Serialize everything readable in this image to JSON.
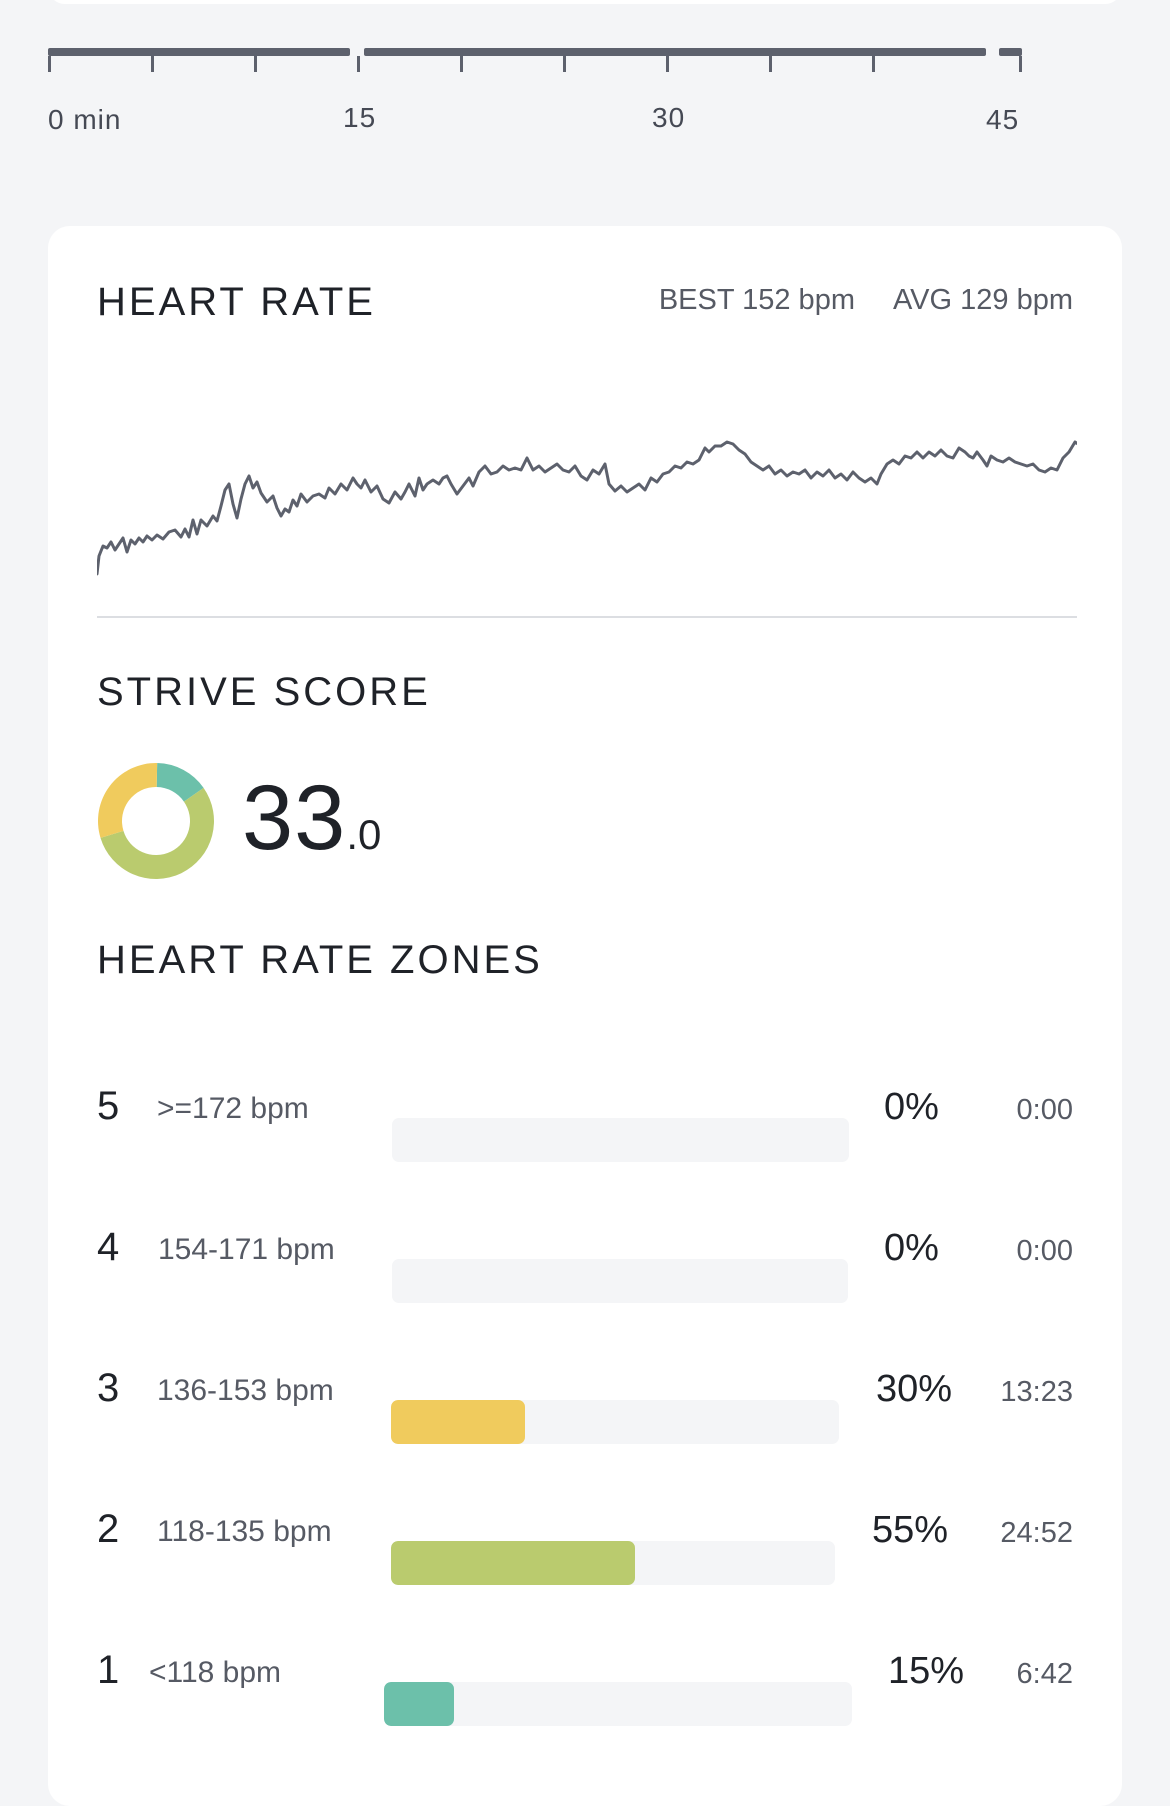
{
  "timeline": {
    "labels": [
      "0 min",
      "15",
      "30",
      "45"
    ]
  },
  "heart_rate": {
    "title": "HEART RATE",
    "best": "BEST 152 bpm",
    "avg": "AVG 129 bpm",
    "line_color": "#5d616d"
  },
  "strive_score": {
    "title": "STRIVE SCORE",
    "integer": "33",
    "decimal": ".0",
    "donut_segments": [
      {
        "zone": "1",
        "fraction": 0.15,
        "color": "#6cc0aa"
      },
      {
        "zone": "2",
        "fraction": 0.55,
        "color": "#bacb6e"
      },
      {
        "zone": "3",
        "fraction": 0.3,
        "color": "#f0cb5d"
      }
    ]
  },
  "zones": {
    "title": "HEART RATE ZONES",
    "rows": [
      {
        "num": "5",
        "range": ">=172 bpm",
        "pct": "0%",
        "time": "0:00",
        "fraction": 0,
        "color": "#f4f5f7"
      },
      {
        "num": "4",
        "range": "154-171 bpm",
        "pct": "0%",
        "time": "0:00",
        "fraction": 0,
        "color": "#f4f5f7"
      },
      {
        "num": "3",
        "range": "136-153 bpm",
        "pct": "30%",
        "time": "13:23",
        "fraction": 0.3,
        "color": "#f0cb5d"
      },
      {
        "num": "2",
        "range": "118-135 bpm",
        "pct": "55%",
        "time": "24:52",
        "fraction": 0.55,
        "color": "#bacb6e"
      },
      {
        "num": "1",
        "range": "<118 bpm",
        "pct": "15%",
        "time": "6:42",
        "fraction": 0.15,
        "color": "#6cc0aa"
      }
    ]
  }
}
